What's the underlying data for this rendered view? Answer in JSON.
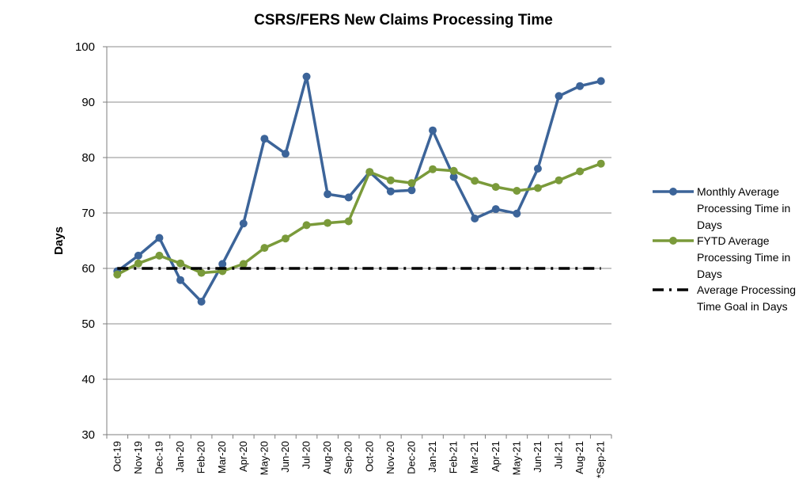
{
  "chart_data": {
    "type": "line",
    "title": "CSRS/FERS New Claims Processing Time",
    "xlabel": "",
    "ylabel": "Days",
    "ylim": [
      30,
      100
    ],
    "yticks": [
      30,
      40,
      50,
      60,
      70,
      80,
      90,
      100
    ],
    "grid": true,
    "legend_position": "right",
    "categories": [
      "Oct-19",
      "Nov-19",
      "Dec-19",
      "Jan-20",
      "Feb-20",
      "Mar-20",
      "Apr-20",
      "May-20",
      "Jun-20",
      "Jul-20",
      "Aug-20",
      "Sep-20",
      "Oct-20",
      "Nov-20",
      "Dec-20",
      "Jan-21",
      "Feb-21",
      "Mar-21",
      "Apr-21",
      "May-21",
      "Jun-21",
      "Jul-21",
      "Aug-21",
      "*Sep-21"
    ],
    "series": [
      {
        "name": "Monthly Average Processing Time in Days",
        "legend_lines": [
          "Monthly Average",
          "Processing Time in",
          "Days"
        ],
        "color": "#3C6499",
        "style": "line-marker",
        "values": [
          59.5,
          62.3,
          65.5,
          57.9,
          54.0,
          60.8,
          68.1,
          83.4,
          80.7,
          94.6,
          73.4,
          72.8,
          77.4,
          73.9,
          74.1,
          84.9,
          76.5,
          69.0,
          70.7,
          69.9,
          78.0,
          91.1,
          92.9,
          93.8
        ]
      },
      {
        "name": "FYTD Average Processing Time in Days",
        "legend_lines": [
          "FYTD Average",
          "Processing Time in",
          "Days"
        ],
        "color": "#7A9A3A",
        "style": "line-marker",
        "values": [
          58.9,
          60.9,
          62.3,
          60.9,
          59.2,
          59.5,
          60.8,
          63.7,
          65.4,
          67.8,
          68.2,
          68.5,
          77.4,
          75.9,
          75.4,
          77.9,
          77.6,
          75.8,
          74.7,
          74.0,
          74.5,
          75.9,
          77.5,
          78.9
        ]
      },
      {
        "name": "Average Processing Time Goal in Days",
        "legend_lines": [
          "Average Processing",
          "Time Goal in Days"
        ],
        "color": "#000000",
        "style": "dash-dot",
        "values": [
          60,
          60,
          60,
          60,
          60,
          60,
          60,
          60,
          60,
          60,
          60,
          60,
          60,
          60,
          60,
          60,
          60,
          60,
          60,
          60,
          60,
          60,
          60,
          60
        ]
      }
    ]
  }
}
